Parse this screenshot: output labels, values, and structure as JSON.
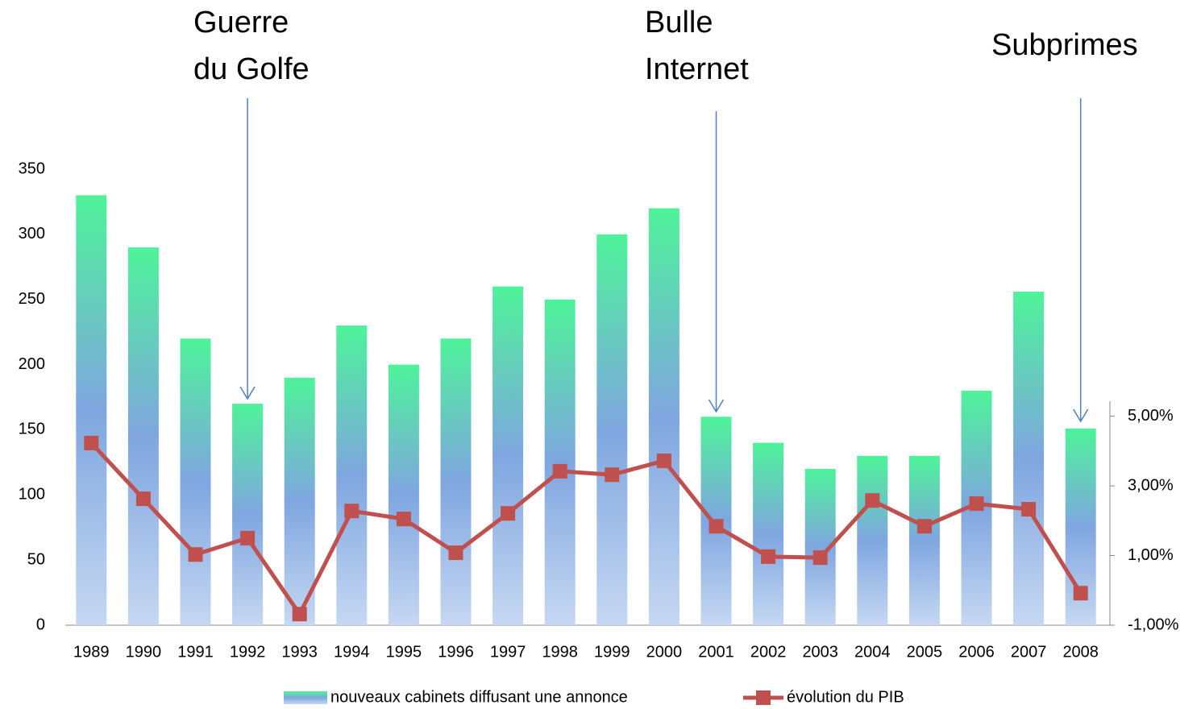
{
  "chart_data": {
    "type": "bar",
    "categories": [
      "1989",
      "1990",
      "1991",
      "1992",
      "1993",
      "1994",
      "1995",
      "1996",
      "1997",
      "1998",
      "1999",
      "2000",
      "2001",
      "2002",
      "2003",
      "2004",
      "2005",
      "2006",
      "2007",
      "2008"
    ],
    "series": [
      {
        "name": "nouveaux cabinets diffusant une annonce",
        "type": "bar",
        "color": "#7fa6e0",
        "values": [
          330,
          290,
          220,
          170,
          190,
          230,
          200,
          220,
          260,
          250,
          300,
          320,
          160,
          140,
          120,
          130,
          130,
          180,
          256,
          151
        ]
      },
      {
        "name": "évolution du PIB",
        "type": "line",
        "axis": "y2",
        "color": "#c0504d",
        "values": [
          4.23,
          2.63,
          1.03,
          1.5,
          -0.68,
          2.28,
          2.05,
          1.08,
          2.21,
          3.42,
          3.32,
          3.72,
          1.84,
          0.97,
          0.94,
          2.58,
          1.84,
          2.49,
          2.33,
          -0.08
        ]
      }
    ],
    "ylim": [
      0,
      350
    ],
    "yticks": [
      0,
      50,
      100,
      150,
      200,
      250,
      300,
      350
    ],
    "y2lim": [
      -1,
      5.43
    ],
    "y2ticks": [
      {
        "value": -1,
        "label": "-1,00%"
      },
      {
        "value": 1,
        "label": "1,00%"
      },
      {
        "value": 3,
        "label": "3,00%"
      },
      {
        "value": 5,
        "label": "5,00%"
      }
    ],
    "annotations": [
      {
        "lines": [
          "Guerre",
          "du Golfe"
        ]
      },
      {
        "lines": [
          "Bulle",
          "Internet"
        ]
      },
      {
        "lines": [
          "Subprimes"
        ]
      }
    ],
    "legend": "bottom"
  }
}
